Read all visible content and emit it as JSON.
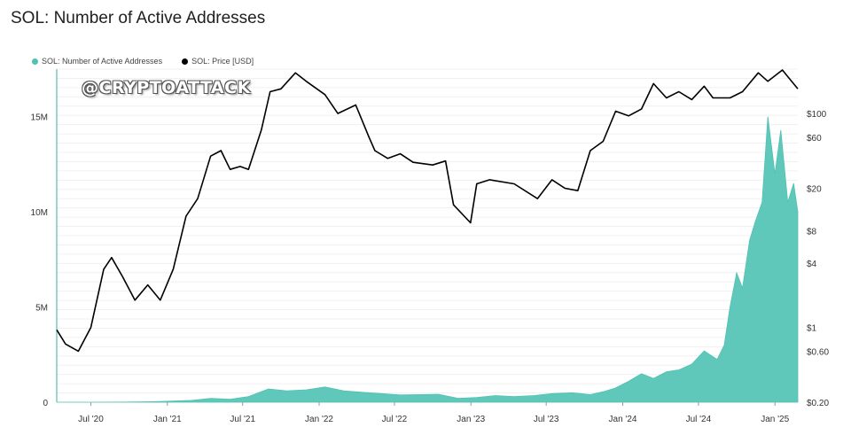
{
  "chart_data": {
    "type": "area",
    "title": "SOL: Number of Active Addresses",
    "watermark": "@CRYPTOATTACK",
    "x_tick_labels": [
      "Jul '20",
      "Jan '21",
      "Jul '21",
      "Jan '22",
      "Jul '22",
      "Jan '23",
      "Jul '23",
      "Jan '24",
      "Jul '24",
      "Jan '25"
    ],
    "x_tick_dates": [
      "2020-07-01",
      "2021-01-01",
      "2021-07-01",
      "2022-01-01",
      "2022-07-01",
      "2023-01-01",
      "2023-07-01",
      "2024-01-01",
      "2024-07-01",
      "2025-01-01"
    ],
    "xlim": [
      "2020-04-10",
      "2025-02-25"
    ],
    "left_axis": {
      "ticks": [
        0,
        5000000,
        10000000,
        15000000
      ],
      "tick_labels": [
        "0",
        "5M",
        "10M",
        "15M"
      ],
      "ylim": [
        0,
        17500000
      ],
      "scale": "linear"
    },
    "right_axis": {
      "ticks": [
        0.2,
        0.6,
        1,
        4,
        8,
        20,
        60,
        100
      ],
      "tick_labels": [
        "$0.20",
        "$0.60",
        "$1",
        "$4",
        "$8",
        "$20",
        "$60",
        "$100"
      ],
      "ylim": [
        0.2,
        260
      ],
      "scale": "log"
    },
    "grid": true,
    "legend_position": "top-left",
    "series": [
      {
        "name": "SOL: Number of Active Addresses",
        "axis": "left",
        "color": "#4fc2b2",
        "x": [
          "2020-04-10",
          "2020-07-01",
          "2020-10-01",
          "2020-12-01",
          "2021-01-15",
          "2021-03-01",
          "2021-04-15",
          "2021-06-01",
          "2021-07-15",
          "2021-09-01",
          "2021-10-15",
          "2021-12-01",
          "2022-01-15",
          "2022-03-01",
          "2022-04-15",
          "2022-06-01",
          "2022-07-15",
          "2022-09-01",
          "2022-10-15",
          "2022-12-01",
          "2023-01-15",
          "2023-03-01",
          "2023-04-15",
          "2023-06-01",
          "2023-07-15",
          "2023-09-01",
          "2023-10-15",
          "2023-11-15",
          "2023-12-15",
          "2024-01-15",
          "2024-02-15",
          "2024-03-15",
          "2024-04-15",
          "2024-05-15",
          "2024-06-15",
          "2024-07-15",
          "2024-08-15",
          "2024-09-01",
          "2024-09-15",
          "2024-10-01",
          "2024-10-15",
          "2024-11-01",
          "2024-11-15",
          "2024-12-01",
          "2024-12-15",
          "2025-01-01",
          "2025-01-15",
          "2025-02-01",
          "2025-02-15",
          "2025-02-25"
        ],
        "values": [
          0,
          2000,
          10000,
          30000,
          60000,
          100000,
          200000,
          160000,
          300000,
          700000,
          600000,
          650000,
          800000,
          600000,
          520000,
          450000,
          380000,
          400000,
          420000,
          200000,
          250000,
          350000,
          300000,
          350000,
          450000,
          500000,
          400000,
          550000,
          750000,
          1100000,
          1500000,
          1250000,
          1600000,
          1700000,
          2000000,
          2700000,
          2250000,
          3000000,
          5000000,
          6800000,
          6000000,
          8500000,
          9500000,
          10500000,
          15000000,
          12000000,
          14300000,
          10500000,
          11500000,
          10000000
        ]
      },
      {
        "name": "SOL: Price [USD]",
        "axis": "right",
        "color": "#000000",
        "x": [
          "2020-04-10",
          "2020-05-01",
          "2020-06-01",
          "2020-07-01",
          "2020-08-01",
          "2020-08-20",
          "2020-09-15",
          "2020-10-15",
          "2020-11-15",
          "2020-12-15",
          "2021-01-15",
          "2021-02-15",
          "2021-03-15",
          "2021-04-15",
          "2021-05-10",
          "2021-06-01",
          "2021-06-25",
          "2021-07-15",
          "2021-08-15",
          "2021-09-05",
          "2021-10-01",
          "2021-11-05",
          "2021-12-01",
          "2022-01-15",
          "2022-02-15",
          "2022-03-30",
          "2022-05-01",
          "2022-05-15",
          "2022-06-15",
          "2022-07-15",
          "2022-08-15",
          "2022-10-01",
          "2022-11-01",
          "2022-11-20",
          "2022-12-31",
          "2023-01-15",
          "2023-02-15",
          "2023-04-15",
          "2023-06-10",
          "2023-07-15",
          "2023-08-15",
          "2023-09-15",
          "2023-10-15",
          "2023-11-15",
          "2023-12-15",
          "2024-01-15",
          "2024-02-15",
          "2024-03-15",
          "2024-04-15",
          "2024-05-15",
          "2024-06-15",
          "2024-07-15",
          "2024-08-05",
          "2024-09-15",
          "2024-10-15",
          "2024-11-22",
          "2024-12-15",
          "2025-01-19",
          "2025-02-10",
          "2025-02-25"
        ],
        "values": [
          0.95,
          0.7,
          0.6,
          1.0,
          3.5,
          4.5,
          3.0,
          1.8,
          2.5,
          1.8,
          3.5,
          11,
          16,
          40,
          45,
          30,
          32,
          30,
          70,
          160,
          170,
          240,
          200,
          150,
          100,
          120,
          60,
          45,
          38,
          42,
          35,
          33,
          36,
          14,
          9.5,
          22,
          24,
          22,
          16,
          24,
          20,
          19,
          45,
          55,
          105,
          95,
          110,
          190,
          140,
          160,
          135,
          180,
          140,
          140,
          160,
          240,
          200,
          255,
          200,
          170
        ]
      }
    ]
  },
  "legend": {
    "active_label": "SOL: Number of Active Addresses",
    "price_label": "SOL: Price [USD]"
  }
}
